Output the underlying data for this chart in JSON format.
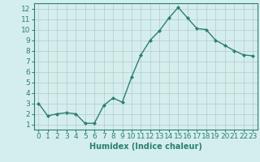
{
  "x": [
    0,
    1,
    2,
    3,
    4,
    5,
    6,
    7,
    8,
    9,
    10,
    11,
    12,
    13,
    14,
    15,
    16,
    17,
    18,
    19,
    20,
    21,
    22,
    23
  ],
  "y": [
    3.0,
    1.8,
    2.0,
    2.1,
    2.0,
    1.1,
    1.1,
    2.8,
    3.5,
    3.1,
    5.5,
    7.6,
    9.0,
    9.9,
    11.1,
    12.1,
    11.1,
    10.1,
    10.0,
    9.0,
    8.5,
    8.0,
    7.6,
    7.5
  ],
  "line_color": "#2d7f6e",
  "marker": "D",
  "marker_size": 2.0,
  "line_width": 1.0,
  "bg_color": "#d4eeee",
  "grid_color": "#b8c8c8",
  "xlabel": "Humidex (Indice chaleur)",
  "xlabel_color": "#2d7f6e",
  "xlabel_fontsize": 7,
  "tick_color": "#2d7f6e",
  "tick_fontsize": 6.5,
  "ylim": [
    0.5,
    12.5
  ],
  "xlim": [
    -0.5,
    23.5
  ],
  "yticks": [
    1,
    2,
    3,
    4,
    5,
    6,
    7,
    8,
    9,
    10,
    11,
    12
  ],
  "xticks": [
    0,
    1,
    2,
    3,
    4,
    5,
    6,
    7,
    8,
    9,
    10,
    11,
    12,
    13,
    14,
    15,
    16,
    17,
    18,
    19,
    20,
    21,
    22,
    23
  ]
}
